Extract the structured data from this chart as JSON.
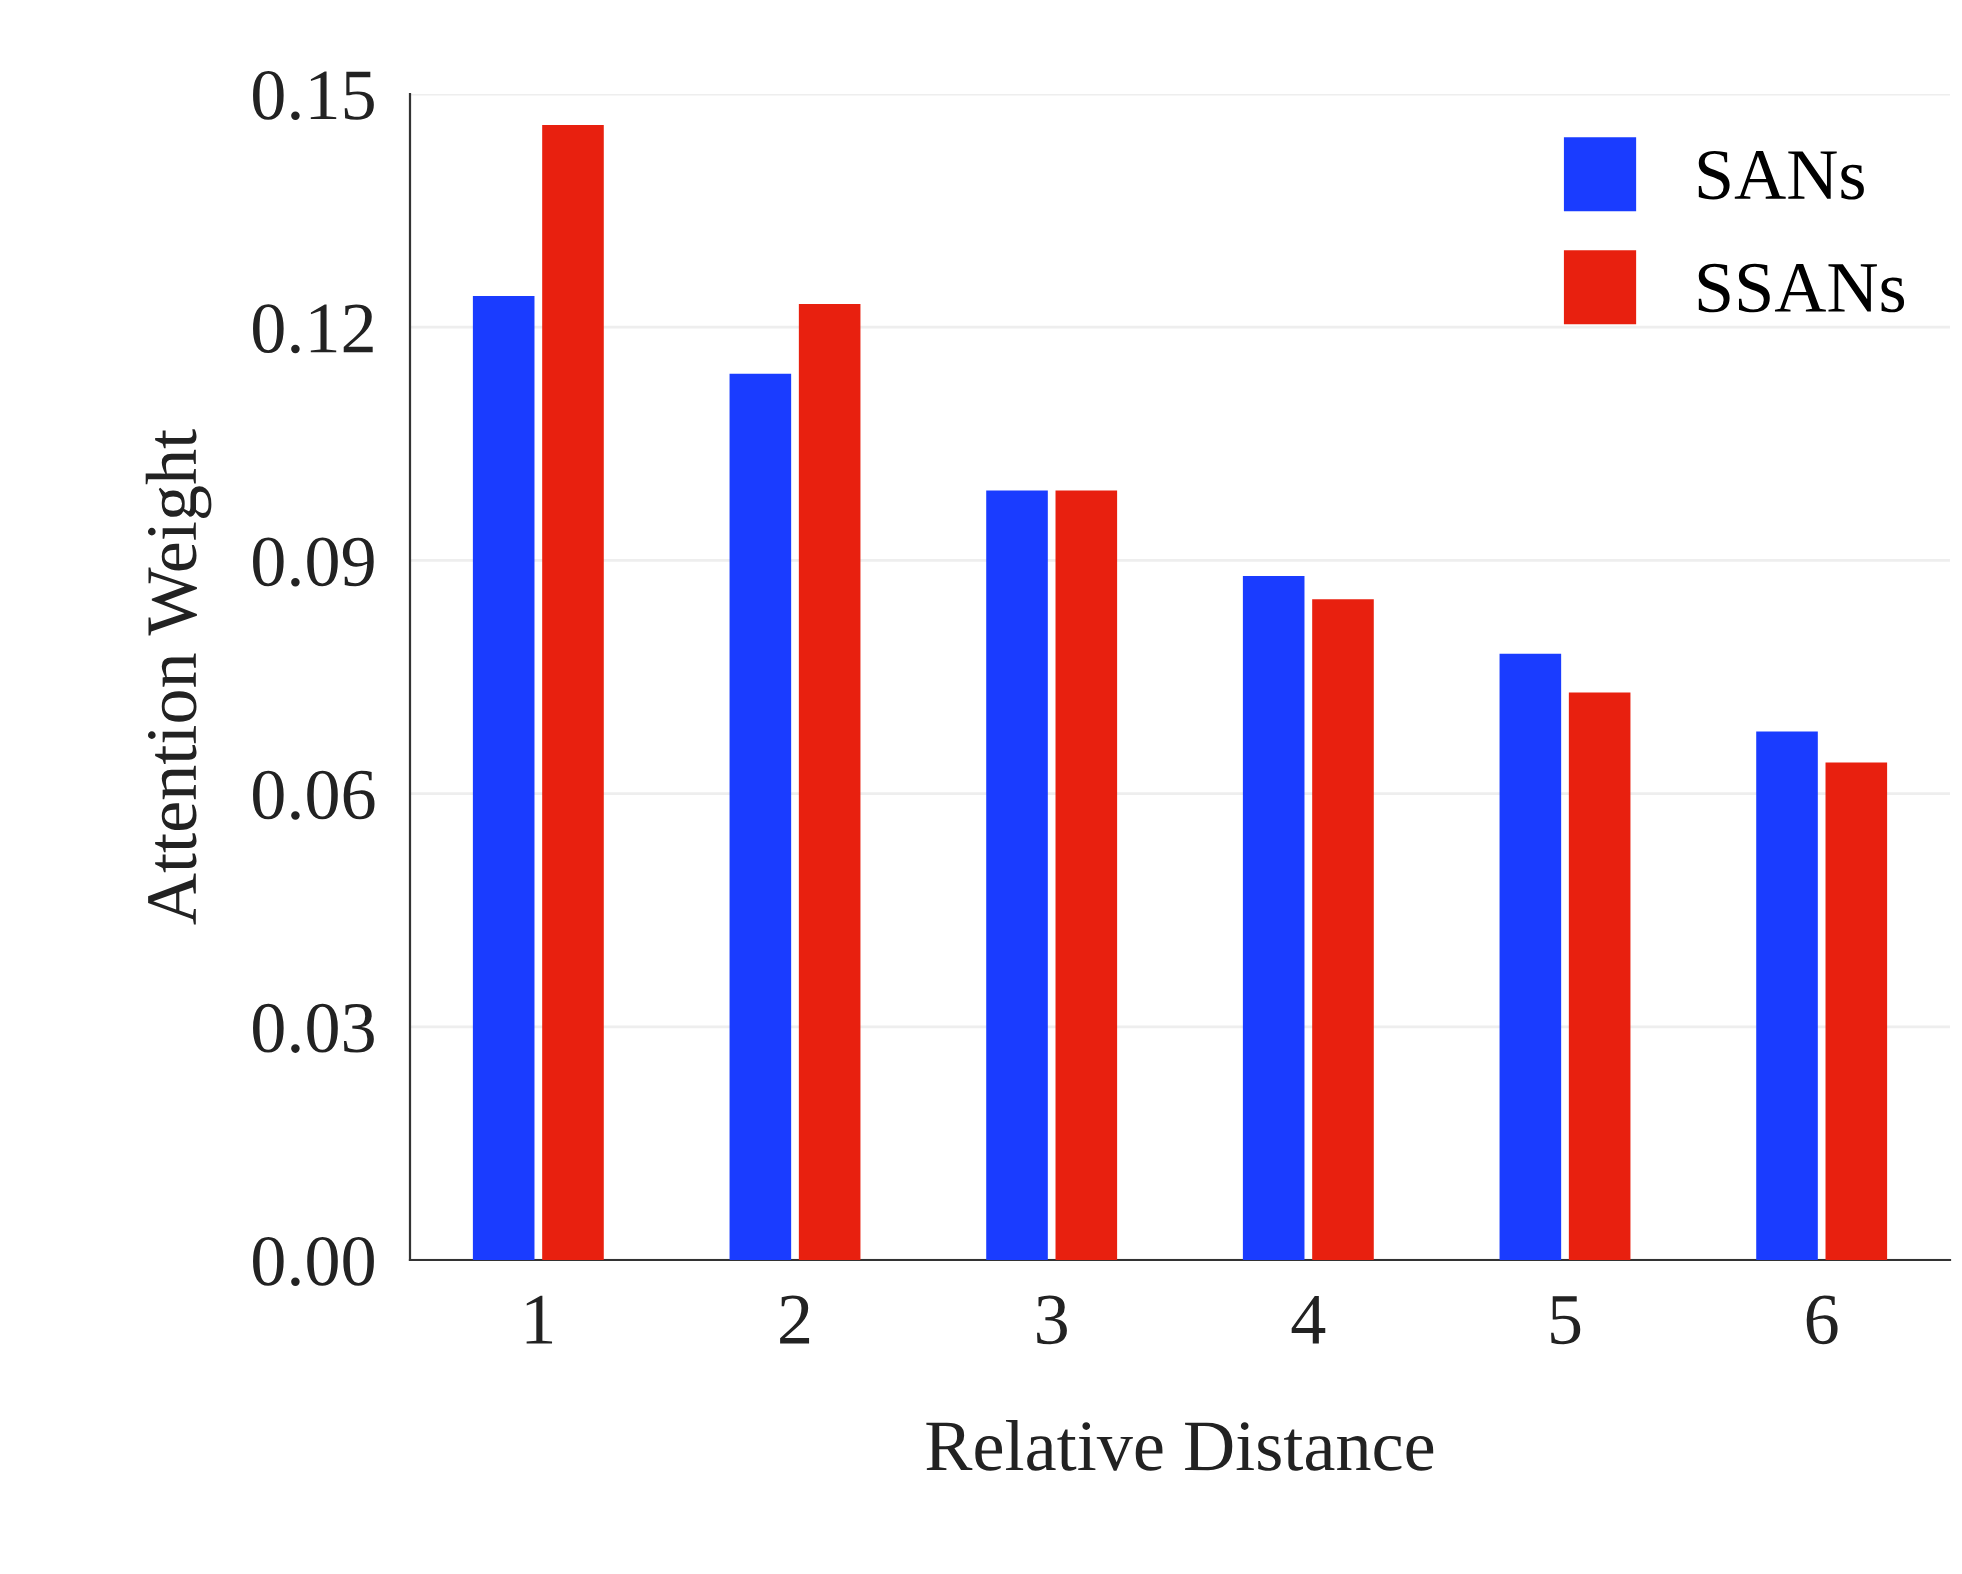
{
  "chart_data": {
    "type": "bar",
    "xlabel": "Relative Distance",
    "ylabel": "Attention Weight",
    "categories": [
      "1",
      "2",
      "3",
      "4",
      "5",
      "6"
    ],
    "series": [
      {
        "name": "SANs",
        "color": "#1a3cff",
        "values": [
          0.124,
          0.114,
          0.099,
          0.088,
          0.078,
          0.068
        ]
      },
      {
        "name": "SSANs",
        "color": "#e8200f",
        "values": [
          0.146,
          0.123,
          0.099,
          0.085,
          0.073,
          0.064
        ]
      }
    ],
    "ylim": [
      0,
      0.15
    ],
    "yticks": [
      {
        "value": 0,
        "label": "0.00"
      },
      {
        "value": 0.03,
        "label": "0.03"
      },
      {
        "value": 0.06,
        "label": "0.06"
      },
      {
        "value": 0.09,
        "label": "0.09"
      },
      {
        "value": 0.12,
        "label": "0.12"
      },
      {
        "value": 0.15,
        "label": "0.15"
      }
    ],
    "grid": "y",
    "legend": "top right"
  }
}
